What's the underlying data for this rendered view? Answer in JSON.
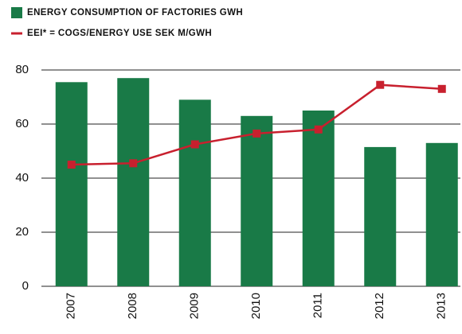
{
  "chart_data": {
    "type": "bar_line",
    "categories": [
      "2007",
      "2008",
      "2009",
      "2010",
      "2011",
      "2012",
      "2013"
    ],
    "series": [
      {
        "name": "ENERGY CONSUMPTION OF FACTORIES GWH",
        "type": "bar",
        "color": "#197a47",
        "values": [
          75.5,
          77,
          69,
          63,
          65,
          51.5,
          53
        ]
      },
      {
        "name": "EEI* = COGS/ENERGY USE SEK M/GWH",
        "type": "line",
        "color": "#c8202e",
        "values": [
          45,
          45.5,
          52.5,
          56.5,
          58,
          74.5,
          73
        ]
      }
    ],
    "ylim": [
      0,
      80
    ],
    "yticks": [
      0,
      20,
      40,
      60,
      80
    ],
    "grid": true
  }
}
